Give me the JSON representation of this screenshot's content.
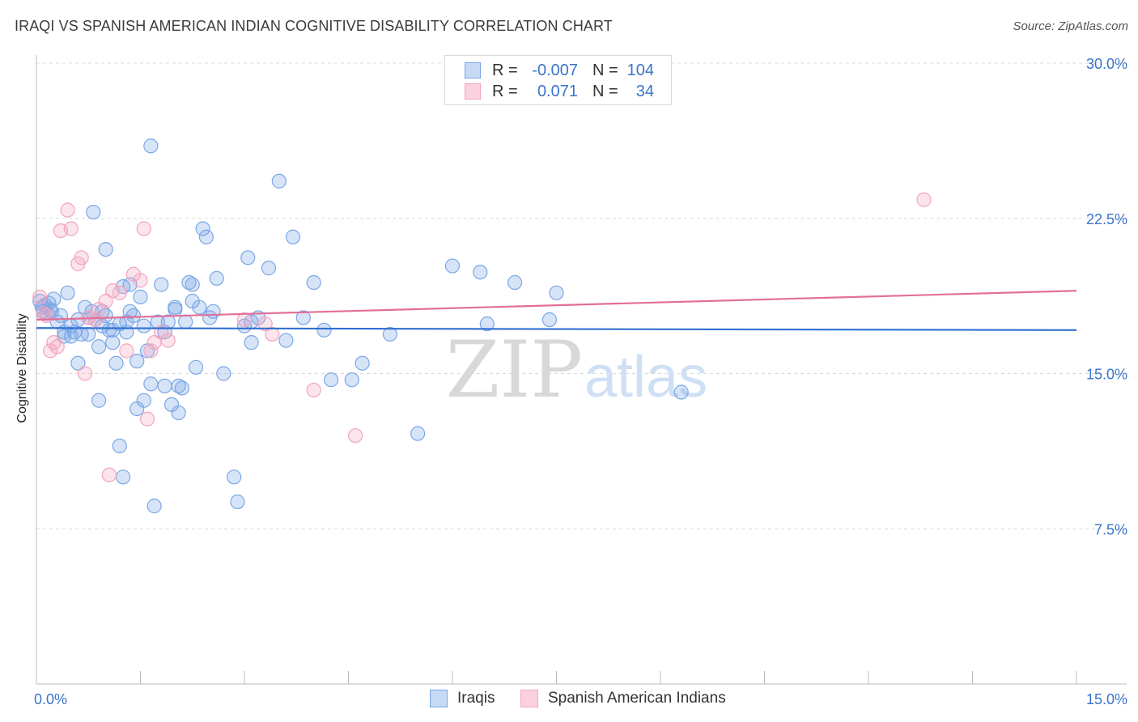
{
  "title": "IRAQI VS SPANISH AMERICAN INDIAN COGNITIVE DISABILITY CORRELATION CHART",
  "source": "Source: ZipAtlas.com",
  "watermark": {
    "zip": "ZIP",
    "atlas": "atlas"
  },
  "legend": {
    "rows": [
      {
        "r_label": "R =",
        "r_value": "-0.007",
        "n_label": "N =",
        "n_value": "104"
      },
      {
        "r_label": "R =",
        "r_value": "0.071",
        "n_label": "N =",
        "n_value": "34"
      }
    ]
  },
  "chart_data": {
    "type": "scatter",
    "title": "IRAQI VS SPANISH AMERICAN INDIAN COGNITIVE DISABILITY CORRELATION CHART",
    "xlabel": "",
    "ylabel": "Cognitive Disability",
    "xlim": [
      0,
      15
    ],
    "ylim": [
      0,
      30
    ],
    "x_tick_labels": [
      "0.0%",
      "15.0%"
    ],
    "y_ticks": [
      7.5,
      15.0,
      22.5,
      30.0
    ],
    "y_tick_labels": [
      "7.5%",
      "15.0%",
      "22.5%",
      "30.0%"
    ],
    "grid": "horizontal dashed",
    "legend_position": "top-center",
    "colors": {
      "iraqis": "#7aa7e6",
      "iraqis_line": "#2f6fd0",
      "spanish": "#f2a5bf",
      "spanish_line": "#e26f98"
    },
    "series": [
      {
        "name": "Iraqis",
        "trend": {
          "x": [
            0,
            15
          ],
          "y": [
            17.2,
            17.1
          ]
        },
        "points": [
          [
            0.05,
            18.5
          ],
          [
            0.08,
            18.2
          ],
          [
            0.1,
            18.0
          ],
          [
            0.12,
            18.3
          ],
          [
            0.15,
            17.9
          ],
          [
            0.18,
            18.4
          ],
          [
            0.2,
            18.1
          ],
          [
            0.22,
            18.0
          ],
          [
            0.25,
            18.6
          ],
          [
            0.3,
            17.5
          ],
          [
            0.35,
            17.8
          ],
          [
            0.4,
            17.0
          ],
          [
            0.45,
            18.9
          ],
          [
            0.5,
            17.3
          ],
          [
            0.55,
            17.0
          ],
          [
            0.6,
            17.6
          ],
          [
            0.65,
            16.9
          ],
          [
            0.7,
            18.2
          ],
          [
            0.75,
            17.7
          ],
          [
            0.8,
            18.0
          ],
          [
            0.85,
            17.6
          ],
          [
            0.9,
            16.3
          ],
          [
            0.95,
            17.3
          ],
          [
            1.0,
            17.8
          ],
          [
            1.05,
            17.1
          ],
          [
            1.1,
            16.5
          ],
          [
            1.15,
            15.5
          ],
          [
            1.2,
            17.4
          ],
          [
            1.25,
            19.2
          ],
          [
            1.3,
            17.5
          ],
          [
            1.35,
            19.3
          ],
          [
            1.4,
            17.8
          ],
          [
            1.45,
            15.6
          ],
          [
            1.5,
            18.7
          ],
          [
            1.55,
            17.3
          ],
          [
            1.6,
            16.1
          ],
          [
            1.65,
            14.5
          ],
          [
            1.75,
            17.5
          ],
          [
            1.8,
            19.3
          ],
          [
            1.85,
            17.0
          ],
          [
            1.9,
            17.5
          ],
          [
            2.0,
            18.2
          ],
          [
            2.05,
            14.4
          ],
          [
            2.1,
            14.3
          ],
          [
            2.2,
            19.4
          ],
          [
            2.25,
            18.5
          ],
          [
            2.3,
            15.3
          ],
          [
            2.4,
            22.0
          ],
          [
            2.45,
            21.6
          ],
          [
            2.55,
            18.0
          ],
          [
            2.6,
            19.6
          ],
          [
            2.7,
            15.0
          ],
          [
            2.85,
            10.0
          ],
          [
            2.9,
            8.8
          ],
          [
            3.0,
            17.3
          ],
          [
            3.05,
            20.6
          ],
          [
            3.1,
            16.5
          ],
          [
            3.2,
            17.7
          ],
          [
            3.35,
            20.1
          ],
          [
            3.5,
            24.3
          ],
          [
            3.6,
            16.6
          ],
          [
            3.7,
            21.6
          ],
          [
            3.85,
            17.7
          ],
          [
            4.0,
            19.4
          ],
          [
            4.15,
            17.1
          ],
          [
            4.25,
            14.7
          ],
          [
            4.55,
            14.7
          ],
          [
            4.7,
            15.5
          ],
          [
            5.1,
            16.9
          ],
          [
            5.5,
            12.1
          ],
          [
            6.0,
            20.2
          ],
          [
            6.4,
            19.9
          ],
          [
            6.5,
            17.4
          ],
          [
            6.9,
            19.4
          ],
          [
            7.4,
            17.6
          ],
          [
            7.5,
            18.9
          ],
          [
            9.3,
            14.1
          ],
          [
            0.6,
            15.5
          ],
          [
            0.75,
            16.9
          ],
          [
            0.82,
            22.8
          ],
          [
            0.9,
            13.7
          ],
          [
            1.0,
            21.0
          ],
          [
            1.2,
            11.5
          ],
          [
            1.25,
            10.0
          ],
          [
            1.35,
            18.0
          ],
          [
            1.45,
            13.3
          ],
          [
            1.55,
            13.7
          ],
          [
            1.7,
            8.6
          ],
          [
            1.65,
            26.0
          ],
          [
            1.95,
            13.5
          ],
          [
            2.05,
            13.1
          ],
          [
            2.15,
            17.5
          ],
          [
            2.25,
            19.3
          ],
          [
            0.4,
            16.8
          ],
          [
            0.5,
            16.8
          ],
          [
            0.95,
            18.0
          ],
          [
            1.1,
            17.1
          ],
          [
            1.3,
            17.0
          ],
          [
            1.85,
            14.4
          ],
          [
            2.0,
            18.1
          ],
          [
            2.35,
            18.2
          ],
          [
            2.5,
            17.7
          ],
          [
            3.1,
            17.5
          ]
        ]
      },
      {
        "name": "Spanish American Indians",
        "trend": {
          "x": [
            0,
            15
          ],
          "y": [
            17.6,
            19.0
          ]
        },
        "points": [
          [
            0.05,
            18.7
          ],
          [
            0.1,
            17.9
          ],
          [
            0.2,
            16.1
          ],
          [
            0.25,
            16.5
          ],
          [
            0.3,
            16.3
          ],
          [
            0.35,
            21.9
          ],
          [
            0.45,
            22.9
          ],
          [
            0.5,
            22.0
          ],
          [
            0.6,
            20.3
          ],
          [
            0.65,
            20.6
          ],
          [
            0.7,
            15.0
          ],
          [
            0.75,
            17.7
          ],
          [
            0.85,
            17.6
          ],
          [
            0.9,
            18.1
          ],
          [
            1.0,
            18.5
          ],
          [
            1.1,
            19.0
          ],
          [
            1.2,
            18.9
          ],
          [
            1.3,
            16.1
          ],
          [
            1.4,
            19.8
          ],
          [
            1.5,
            19.5
          ],
          [
            1.55,
            22.0
          ],
          [
            1.6,
            12.8
          ],
          [
            1.65,
            16.1
          ],
          [
            1.7,
            16.5
          ],
          [
            1.8,
            17.0
          ],
          [
            1.9,
            16.6
          ],
          [
            3.0,
            17.6
          ],
          [
            3.3,
            17.4
          ],
          [
            3.4,
            16.9
          ],
          [
            4.0,
            14.2
          ],
          [
            4.6,
            12.0
          ],
          [
            1.05,
            10.1
          ],
          [
            12.8,
            23.4
          ],
          [
            0.15,
            17.8
          ]
        ]
      }
    ]
  },
  "bottom_legend": {
    "iraqis": "Iraqis",
    "spanish": "Spanish American Indians"
  }
}
